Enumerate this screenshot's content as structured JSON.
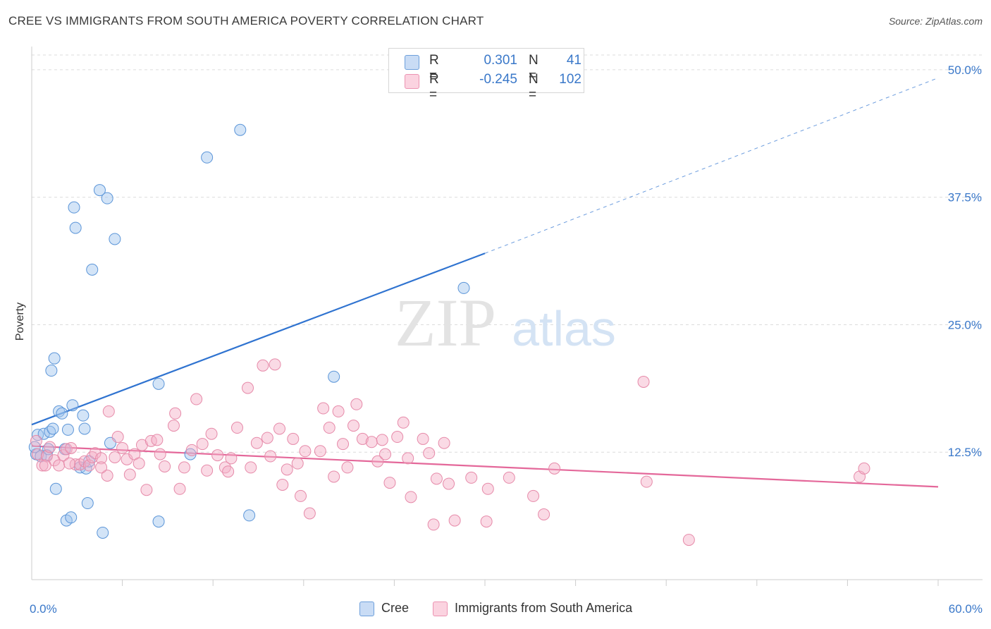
{
  "title": "CREE VS IMMIGRANTS FROM SOUTH AMERICA POVERTY CORRELATION CHART",
  "source": "Source: ZipAtlas.com",
  "watermark": {
    "zip": "ZIP",
    "atlas": "atlas"
  },
  "legend": {
    "rows": [
      {
        "r_label": "R =",
        "r_value": "0.301",
        "n_label": "N =",
        "n_value": "41",
        "color": "#9ec3ee"
      },
      {
        "r_label": "R =",
        "r_value": "-0.245",
        "n_label": "N =",
        "n_value": "102",
        "color": "#f5aec5"
      }
    ]
  },
  "bottom_legend": [
    {
      "label": "Cree",
      "color": "#9ec3ee"
    },
    {
      "label": "Immigrants from South America",
      "color": "#f5aec5"
    }
  ],
  "chart_data": {
    "type": "scatter",
    "title": "CREE VS IMMIGRANTS FROM SOUTH AMERICA POVERTY CORRELATION CHART",
    "xlabel": "",
    "ylabel": "Poverty",
    "xlim": [
      0,
      60
    ],
    "ylim": [
      0,
      52
    ],
    "x_tick_labels": [
      {
        "value": 0,
        "label": "0.0%"
      },
      {
        "value": 60,
        "label": "60.0%"
      }
    ],
    "x_minor_ticks": [
      6,
      12,
      18,
      24,
      30,
      36,
      42,
      48,
      54,
      60
    ],
    "y_ticks": [
      {
        "value": 12.5,
        "label": "12.5%"
      },
      {
        "value": 25.0,
        "label": "25.0%"
      },
      {
        "value": 37.5,
        "label": "37.5%"
      },
      {
        "value": 50.0,
        "label": "50.0%"
      }
    ],
    "grid": true,
    "series": [
      {
        "name": "Cree",
        "color": "#9ec3ee",
        "stroke": "#5b95d8",
        "points": [
          [
            0.3,
            12.3
          ],
          [
            0.4,
            14.2
          ],
          [
            0.6,
            12.1
          ],
          [
            0.8,
            14.3
          ],
          [
            1.0,
            12.2
          ],
          [
            1.1,
            12.8
          ],
          [
            1.2,
            14.5
          ],
          [
            1.3,
            20.5
          ],
          [
            1.4,
            14.8
          ],
          [
            1.5,
            21.7
          ],
          [
            1.6,
            8.9
          ],
          [
            1.8,
            16.5
          ],
          [
            2.0,
            16.3
          ],
          [
            2.2,
            12.8
          ],
          [
            2.3,
            5.8
          ],
          [
            2.4,
            14.7
          ],
          [
            2.6,
            6.1
          ],
          [
            2.7,
            17.1
          ],
          [
            2.8,
            36.5
          ],
          [
            2.9,
            34.5
          ],
          [
            3.2,
            11.0
          ],
          [
            3.4,
            16.1
          ],
          [
            3.5,
            14.8
          ],
          [
            3.6,
            10.9
          ],
          [
            3.7,
            7.5
          ],
          [
            3.8,
            11.6
          ],
          [
            4.0,
            30.4
          ],
          [
            4.5,
            38.2
          ],
          [
            4.7,
            4.6
          ],
          [
            5.0,
            37.4
          ],
          [
            5.2,
            13.4
          ],
          [
            5.5,
            33.4
          ],
          [
            8.4,
            19.2
          ],
          [
            8.4,
            5.7
          ],
          [
            10.5,
            12.3
          ],
          [
            11.6,
            41.4
          ],
          [
            13.8,
            44.1
          ],
          [
            14.4,
            6.3
          ],
          [
            20.0,
            19.9
          ],
          [
            28.6,
            28.6
          ],
          [
            0.2,
            13.0
          ]
        ],
        "trend": {
          "x0": 0,
          "y0": 15.2,
          "x1": 30,
          "y1": 32.0,
          "dashed_to_x": 60,
          "dashed_to_y": 49.2,
          "color": "#2f73d0"
        }
      },
      {
        "name": "Immigrants from South America",
        "color": "#f5aec5",
        "stroke": "#e68aa9",
        "points": [
          [
            0.3,
            13.6
          ],
          [
            0.4,
            12.3
          ],
          [
            0.7,
            11.2
          ],
          [
            1.0,
            12.1
          ],
          [
            1.2,
            13.0
          ],
          [
            1.5,
            11.7
          ],
          [
            1.8,
            11.2
          ],
          [
            2.1,
            12.2
          ],
          [
            2.3,
            12.8
          ],
          [
            2.6,
            12.9
          ],
          [
            2.9,
            11.3
          ],
          [
            3.2,
            11.3
          ],
          [
            3.5,
            11.6
          ],
          [
            3.8,
            11.2
          ],
          [
            4.0,
            12.0
          ],
          [
            4.2,
            12.4
          ],
          [
            4.6,
            11.9
          ],
          [
            5.0,
            10.2
          ],
          [
            5.1,
            16.5
          ],
          [
            5.5,
            12.0
          ],
          [
            5.7,
            14.0
          ],
          [
            6.0,
            12.9
          ],
          [
            6.3,
            11.8
          ],
          [
            6.5,
            10.3
          ],
          [
            6.8,
            12.3
          ],
          [
            7.1,
            11.4
          ],
          [
            7.3,
            13.2
          ],
          [
            7.6,
            8.8
          ],
          [
            7.9,
            13.6
          ],
          [
            8.3,
            13.7
          ],
          [
            8.5,
            12.3
          ],
          [
            8.8,
            11.1
          ],
          [
            9.4,
            15.1
          ],
          [
            9.5,
            16.3
          ],
          [
            9.8,
            8.9
          ],
          [
            10.1,
            11.0
          ],
          [
            10.6,
            12.7
          ],
          [
            10.9,
            17.7
          ],
          [
            11.3,
            13.3
          ],
          [
            11.6,
            10.7
          ],
          [
            11.9,
            14.3
          ],
          [
            12.3,
            12.2
          ],
          [
            12.8,
            11.0
          ],
          [
            13.0,
            10.6
          ],
          [
            13.2,
            11.9
          ],
          [
            13.6,
            14.9
          ],
          [
            14.3,
            18.8
          ],
          [
            14.5,
            11.0
          ],
          [
            14.9,
            13.4
          ],
          [
            15.3,
            21.0
          ],
          [
            15.6,
            13.9
          ],
          [
            15.8,
            12.1
          ],
          [
            16.1,
            21.1
          ],
          [
            16.4,
            14.8
          ],
          [
            16.6,
            9.3
          ],
          [
            16.9,
            10.8
          ],
          [
            17.3,
            13.8
          ],
          [
            17.6,
            11.4
          ],
          [
            17.8,
            8.2
          ],
          [
            18.1,
            12.6
          ],
          [
            18.4,
            6.5
          ],
          [
            19.1,
            12.6
          ],
          [
            19.3,
            16.8
          ],
          [
            19.7,
            14.9
          ],
          [
            20.0,
            10.1
          ],
          [
            20.3,
            16.5
          ],
          [
            20.6,
            13.3
          ],
          [
            20.9,
            11.0
          ],
          [
            21.3,
            15.1
          ],
          [
            21.5,
            17.2
          ],
          [
            21.9,
            13.8
          ],
          [
            22.5,
            13.5
          ],
          [
            22.9,
            11.6
          ],
          [
            23.2,
            13.7
          ],
          [
            23.4,
            12.3
          ],
          [
            23.7,
            9.5
          ],
          [
            24.2,
            14.0
          ],
          [
            24.6,
            15.4
          ],
          [
            24.9,
            11.9
          ],
          [
            25.1,
            8.1
          ],
          [
            25.9,
            13.8
          ],
          [
            26.3,
            12.4
          ],
          [
            26.6,
            5.4
          ],
          [
            26.8,
            9.9
          ],
          [
            27.3,
            13.4
          ],
          [
            27.6,
            9.4
          ],
          [
            28.0,
            5.8
          ],
          [
            29.1,
            10.0
          ],
          [
            30.1,
            5.7
          ],
          [
            30.2,
            8.9
          ],
          [
            31.6,
            10.0
          ],
          [
            33.9,
            6.4
          ],
          [
            33.2,
            8.2
          ],
          [
            34.6,
            10.9
          ],
          [
            40.5,
            19.4
          ],
          [
            40.7,
            9.6
          ],
          [
            43.5,
            3.9
          ],
          [
            54.8,
            10.1
          ],
          [
            55.1,
            10.9
          ],
          [
            4.6,
            11.0
          ],
          [
            2.5,
            11.4
          ],
          [
            0.9,
            11.2
          ]
        ],
        "trend": {
          "x0": 0,
          "y0": 13.1,
          "x1": 60,
          "y1": 9.1,
          "color": "#e4689a"
        }
      }
    ]
  }
}
